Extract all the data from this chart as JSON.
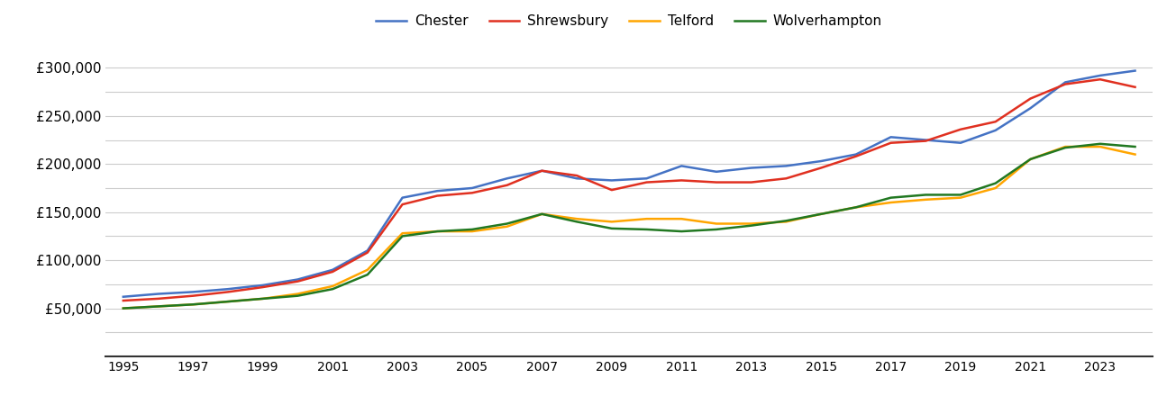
{
  "years": [
    1995,
    1996,
    1997,
    1998,
    1999,
    2000,
    2001,
    2002,
    2003,
    2004,
    2005,
    2006,
    2007,
    2008,
    2009,
    2010,
    2011,
    2012,
    2013,
    2014,
    2015,
    2016,
    2017,
    2018,
    2019,
    2020,
    2021,
    2022,
    2023,
    2024
  ],
  "chester": [
    62000,
    65000,
    67000,
    70000,
    74000,
    80000,
    90000,
    110000,
    165000,
    172000,
    175000,
    185000,
    193000,
    185000,
    183000,
    185000,
    198000,
    192000,
    196000,
    198000,
    203000,
    210000,
    228000,
    225000,
    222000,
    235000,
    258000,
    285000,
    292000,
    297000
  ],
  "shrewsbury": [
    58000,
    60000,
    63000,
    67000,
    72000,
    78000,
    88000,
    108000,
    158000,
    167000,
    170000,
    178000,
    193000,
    188000,
    173000,
    181000,
    183000,
    181000,
    181000,
    185000,
    196000,
    208000,
    222000,
    224000,
    236000,
    244000,
    268000,
    283000,
    288000,
    280000
  ],
  "telford": [
    50000,
    52000,
    54000,
    57000,
    60000,
    65000,
    73000,
    90000,
    128000,
    130000,
    130000,
    135000,
    148000,
    143000,
    140000,
    143000,
    143000,
    138000,
    138000,
    140000,
    148000,
    155000,
    160000,
    163000,
    165000,
    175000,
    205000,
    218000,
    218000,
    210000
  ],
  "wolverhampton": [
    50000,
    52000,
    54000,
    57000,
    60000,
    63000,
    70000,
    85000,
    125000,
    130000,
    132000,
    138000,
    148000,
    140000,
    133000,
    132000,
    130000,
    132000,
    136000,
    141000,
    148000,
    155000,
    165000,
    168000,
    168000,
    180000,
    205000,
    217000,
    221000,
    218000
  ],
  "colors": {
    "Chester": "#4472c4",
    "Shrewsbury": "#e03020",
    "Telford": "#ffa500",
    "Wolverhampton": "#217821"
  },
  "yticks": [
    0,
    25000,
    50000,
    75000,
    100000,
    125000,
    150000,
    175000,
    200000,
    225000,
    250000,
    275000,
    300000
  ],
  "ytick_labels": [
    "",
    "",
    "£50,000",
    "",
    "£100,000",
    "",
    "£150,000",
    "",
    "£200,000",
    "",
    "£250,000",
    "",
    "£300,000"
  ],
  "ylim": [
    0,
    320000
  ],
  "xlim": [
    1994.5,
    2024.5
  ],
  "background_color": "#ffffff",
  "grid_color": "#cccccc",
  "label_fontsize": 11,
  "legend_fontsize": 11
}
